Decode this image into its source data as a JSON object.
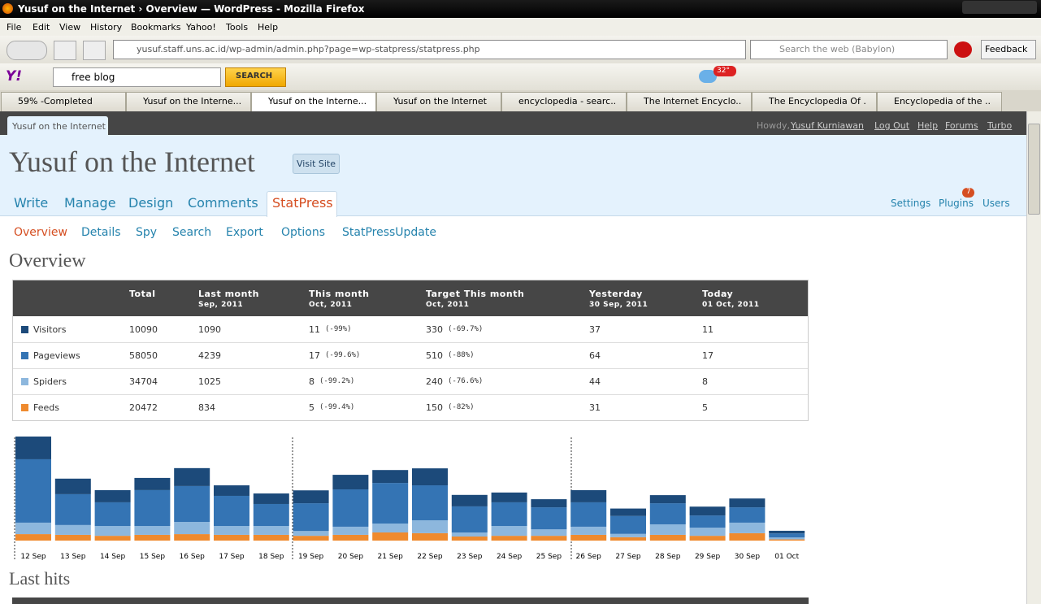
{
  "window": {
    "title": "Yusuf on the Internet › Overview — WordPress - Mozilla Firefox"
  },
  "menu": [
    "File",
    "Edit",
    "View",
    "History",
    "Bookmarks",
    "Yahoo!",
    "Tools",
    "Help"
  ],
  "address": {
    "url": "yusuf.staff.uns.ac.id/wp-admin/admin.php?page=wp-statpress/statpress.php",
    "search": "Search the web (Babylon)",
    "feedback": "Feedback"
  },
  "yahoo_toolbar": {
    "query": "free blog",
    "button": "SEARCH",
    "weather": "32°"
  },
  "tabs": [
    "59% -Completed",
    "Yusuf on the Interne...",
    "Yusuf on the Interne...",
    "Yusuf on the Internet",
    "encyclopedia - searc...",
    "The Internet Encyclo...",
    "The Encyclopedia Of ...",
    "Encyclopedia of the ..."
  ],
  "admin_bar": {
    "site": "Yusuf on the Internet",
    "howdy": "Howdy,",
    "user": "Yusuf Kurniawan",
    "links": [
      "Log Out",
      "Help",
      "Forums",
      "Turbo"
    ]
  },
  "header": {
    "title": "Yusuf on the Internet",
    "visit": "Visit Site"
  },
  "nav": [
    "Write",
    "Manage",
    "Design",
    "Comments",
    "StatPress"
  ],
  "nav_right": [
    "Settings",
    "Plugins",
    "Users"
  ],
  "plugins_badge": "7",
  "subnav": [
    "Overview",
    "Details",
    "Spy",
    "Search",
    "Export",
    "Options",
    "StatPressUpdate"
  ],
  "heading": "Overview",
  "table": {
    "header": [
      [
        "Total",
        ""
      ],
      [
        "Last month",
        "Sep, 2011"
      ],
      [
        "This month",
        "Oct, 2011"
      ],
      [
        "Target This month",
        "Oct, 2011"
      ],
      [
        "Yesterday",
        "30 Sep, 2011"
      ],
      [
        "Today",
        "01 Oct, 2011"
      ]
    ],
    "rows": [
      [
        [
          "10090"
        ],
        [
          "1090"
        ],
        [
          "11",
          "(-99%)"
        ],
        [
          "330",
          "(-69.7%)"
        ],
        [
          "37"
        ],
        [
          "11"
        ]
      ],
      [
        [
          "58050"
        ],
        [
          "4239"
        ],
        [
          "17",
          "(-99.6%)"
        ],
        [
          "510",
          "(-88%)"
        ],
        [
          "64"
        ],
        [
          "17"
        ]
      ],
      [
        [
          "34704"
        ],
        [
          "1025"
        ],
        [
          "8",
          "(-99.2%)"
        ],
        [
          "240",
          "(-76.6%)"
        ],
        [
          "44"
        ],
        [
          "8"
        ]
      ],
      [
        [
          "20472"
        ],
        [
          "834"
        ],
        [
          "5",
          "(-99.4%)"
        ],
        [
          "150",
          "(-82%)"
        ],
        [
          "31"
        ],
        [
          "5"
        ]
      ]
    ]
  },
  "chart_data": {
    "type": "bar",
    "stacked": true,
    "categories": [
      "12 Sep",
      "13 Sep",
      "14 Sep",
      "15 Sep",
      "16 Sep",
      "17 Sep",
      "18 Sep",
      "19 Sep",
      "20 Sep",
      "21 Sep",
      "22 Sep",
      "23 Sep",
      "24 Sep",
      "25 Sep",
      "26 Sep",
      "27 Sep",
      "28 Sep",
      "29 Sep",
      "30 Sep",
      "01 Oct"
    ],
    "series": [
      {
        "name": "Visitors",
        "color": "#1c4a7a",
        "values": [
          95,
          65,
          51,
          51,
          75,
          44,
          44,
          54,
          61,
          54,
          71,
          48,
          41,
          34,
          51,
          31,
          34,
          37,
          37,
          11
        ]
      },
      {
        "name": "Pageviews",
        "color": "#3474b4",
        "values": [
          265,
          129,
          99,
          150,
          150,
          126,
          92,
          116,
          156,
          170,
          146,
          109,
          99,
          92,
          102,
          75,
          88,
          51,
          64,
          17
        ]
      },
      {
        "name": "Spiders",
        "color": "#8db7dd",
        "values": [
          48,
          41,
          41,
          37,
          51,
          37,
          37,
          20,
          34,
          37,
          54,
          17,
          41,
          27,
          34,
          14,
          44,
          34,
          44,
          8
        ]
      },
      {
        "name": "Feeds",
        "color": "#ef8a2e",
        "values": [
          27,
          24,
          20,
          24,
          27,
          24,
          24,
          20,
          24,
          34,
          31,
          17,
          20,
          20,
          24,
          14,
          24,
          20,
          31,
          5
        ]
      }
    ]
  },
  "last_hits": "Last hits"
}
